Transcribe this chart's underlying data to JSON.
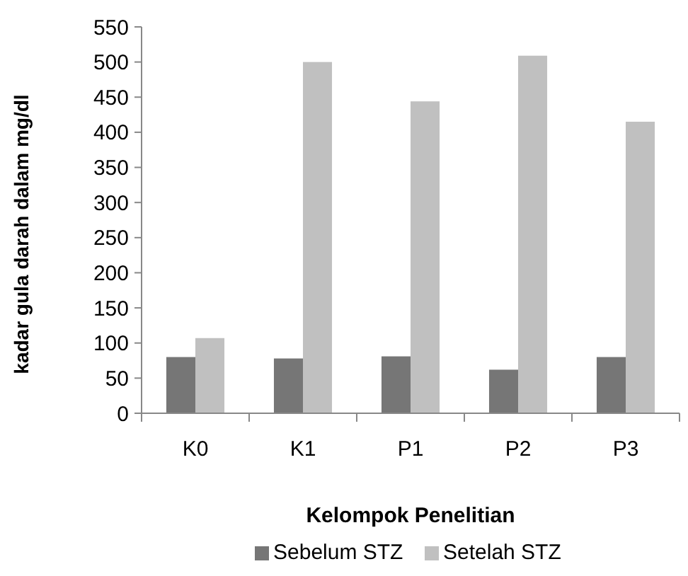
{
  "chart_data": {
    "type": "bar",
    "xlabel": "Kelompok Penelitian",
    "ylabel": "kadar gula darah dalam mg/dl",
    "categories": [
      "K0",
      "K1",
      "P1",
      "P2",
      "P3"
    ],
    "series": [
      {
        "name": "Sebelum STZ",
        "color": "#767676",
        "values": [
          80,
          78,
          81,
          62,
          80
        ]
      },
      {
        "name": "Setelah STZ",
        "color": "#c0c0c0",
        "values": [
          107,
          500,
          444,
          509,
          415
        ]
      }
    ],
    "ylim": [
      0,
      550
    ],
    "yticks": [
      0,
      50,
      100,
      150,
      200,
      250,
      300,
      350,
      400,
      450,
      500,
      550
    ],
    "grid": false,
    "legend": "bottom"
  }
}
